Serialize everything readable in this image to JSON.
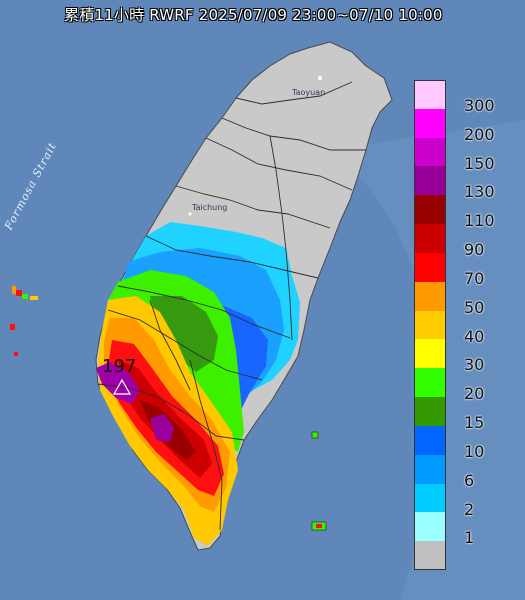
{
  "title": "累積11小時 RWRF 2025/07/09 23:00~07/10 10:00",
  "strait_label": "Formosa Strait",
  "places": {
    "north": "Taoyuan",
    "central": "Taichung"
  },
  "max_value": "197",
  "legend": [
    {
      "label": "300",
      "color": "#ffc8ff"
    },
    {
      "label": "200",
      "color": "#ff00ff"
    },
    {
      "label": "150",
      "color": "#cc00cc"
    },
    {
      "label": "130",
      "color": "#990099"
    },
    {
      "label": "110",
      "color": "#990000"
    },
    {
      "label": "90",
      "color": "#cc0000"
    },
    {
      "label": "70",
      "color": "#ff0000"
    },
    {
      "label": "50",
      "color": "#ff9900"
    },
    {
      "label": "40",
      "color": "#ffcc00"
    },
    {
      "label": "30",
      "color": "#ffff00"
    },
    {
      "label": "20",
      "color": "#33ff00"
    },
    {
      "label": "15",
      "color": "#339900"
    },
    {
      "label": "10",
      "color": "#0066ff"
    },
    {
      "label": "6",
      "color": "#0099ff"
    },
    {
      "label": "2",
      "color": "#00ccff"
    },
    {
      "label": "1",
      "color": "#99ffff"
    },
    {
      "label": "",
      "color": "#c0c0c0"
    }
  ]
}
